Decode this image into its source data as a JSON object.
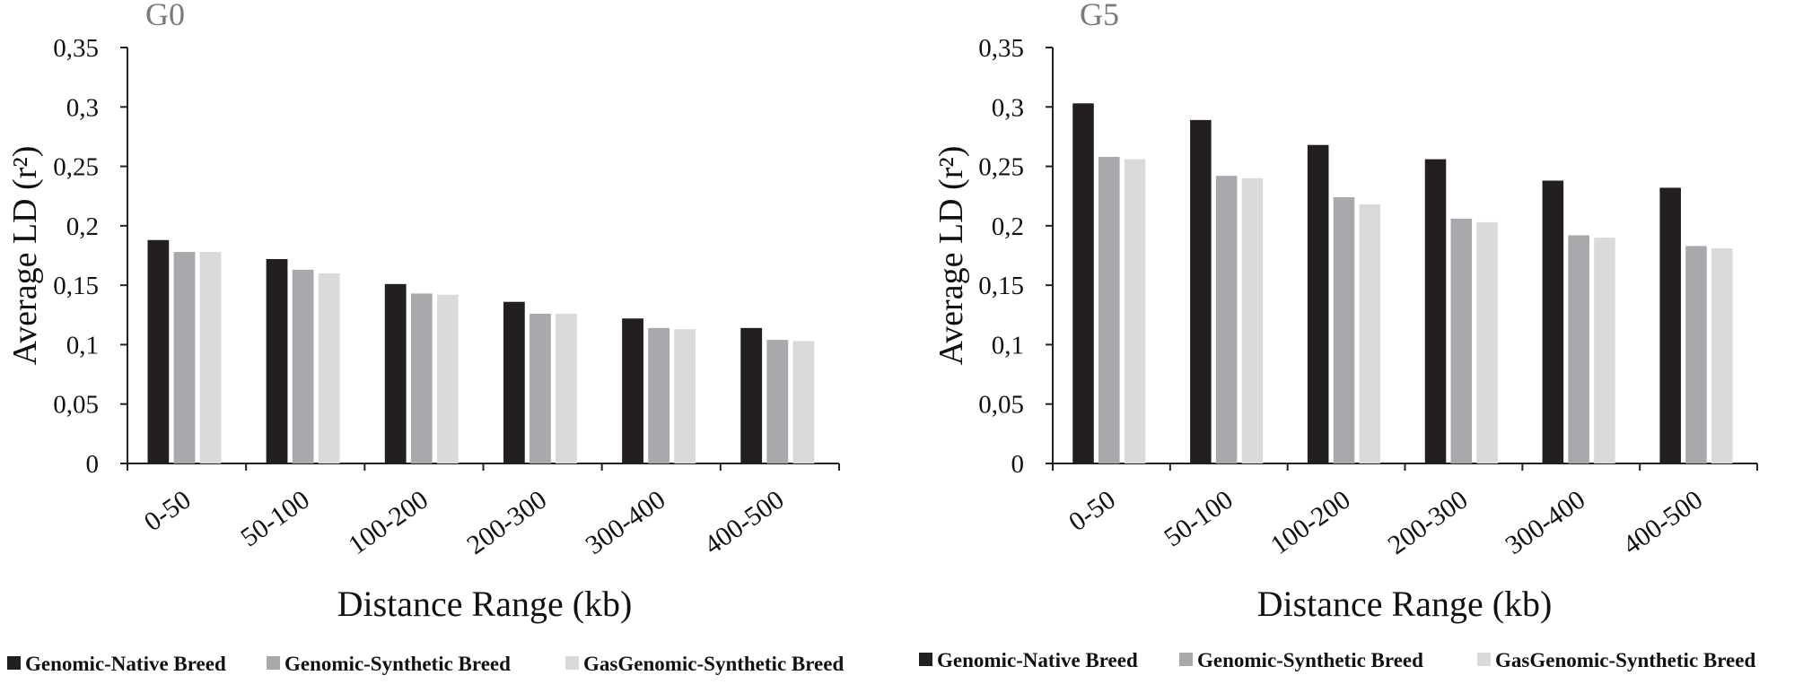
{
  "colors": {
    "native": "#231f20",
    "synthetic": "#a7a9ac",
    "gas_synthetic": "#d9dadb",
    "axis": "#222222",
    "panel_title": "#7a7a7a"
  },
  "legend": [
    {
      "label": "Genomic-Native Breed",
      "color": "#231f20"
    },
    {
      "label": "Genomic-Synthetic Breed",
      "color": "#a7a9ac"
    },
    {
      "label": "GasGenomic-Synthetic Breed",
      "color": "#d9dadb"
    }
  ],
  "chart_data": [
    {
      "type": "bar",
      "title": "G0",
      "xlabel": "Distance Range (kb)",
      "ylabel": "Average LD (r²)",
      "ylim": [
        0,
        0.35
      ],
      "yticks": [
        "0",
        "0,05",
        "0,1",
        "0,15",
        "0,2",
        "0,25",
        "0,3",
        "0,35"
      ],
      "categories": [
        "0-50",
        "50-100",
        "100-200",
        "200-300",
        "300-400",
        "400-500"
      ],
      "series": [
        {
          "name": "Genomic-Native Breed",
          "values": [
            0.188,
            0.172,
            0.151,
            0.136,
            0.122,
            0.114
          ]
        },
        {
          "name": "Genomic-Synthetic Breed",
          "values": [
            0.178,
            0.163,
            0.143,
            0.126,
            0.114,
            0.104
          ]
        },
        {
          "name": "GasGenomic-Synthetic Breed",
          "values": [
            0.178,
            0.16,
            0.142,
            0.126,
            0.113,
            0.103
          ]
        }
      ]
    },
    {
      "type": "bar",
      "title": "G5",
      "xlabel": "Distance Range (kb)",
      "ylabel": "Average LD (r²)",
      "ylim": [
        0,
        0.35
      ],
      "yticks": [
        "0",
        "0,05",
        "0,1",
        "0,15",
        "0,2",
        "0,25",
        "0,3",
        "0,35"
      ],
      "categories": [
        "0-50",
        "50-100",
        "100-200",
        "200-300",
        "300-400",
        "400-500"
      ],
      "series": [
        {
          "name": "Genomic-Native Breed",
          "values": [
            0.303,
            0.289,
            0.268,
            0.256,
            0.238,
            0.232
          ]
        },
        {
          "name": "Genomic-Synthetic Breed",
          "values": [
            0.258,
            0.242,
            0.224,
            0.206,
            0.192,
            0.183
          ]
        },
        {
          "name": "GasGenomic-Synthetic Breed",
          "values": [
            0.256,
            0.24,
            0.218,
            0.203,
            0.19,
            0.181
          ]
        }
      ]
    }
  ]
}
